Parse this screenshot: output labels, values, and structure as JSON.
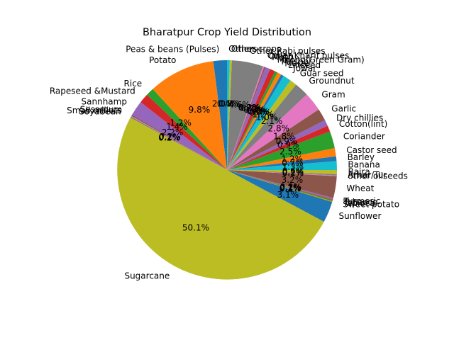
{
  "chart_data": {
    "type": "pie",
    "title": "Bharatpur Crop Yield Distribution",
    "start_angle_deg": 90,
    "direction": "counterclockwise",
    "pct_format": "%1.1f%%",
    "slices": [
      {
        "label": "Peas & beans (Pulses)",
        "value": 2.0,
        "color": "#1f77b4"
      },
      {
        "label": "Potato",
        "value": 9.8,
        "color": "#ff7f0e"
      },
      {
        "label": "Rice",
        "value": 1.2,
        "color": "#2ca02c"
      },
      {
        "label": "Rapeseed &Mustard",
        "value": 1.4,
        "color": "#d62728"
      },
      {
        "label": "Sannhamp",
        "value": 2.2,
        "color": "#9467bd"
      },
      {
        "label": "Sesamum",
        "value": 0.2,
        "color": "#8c564b"
      },
      {
        "label": "Small millets",
        "value": 0.1,
        "color": "#e377c2"
      },
      {
        "label": "Soyabean",
        "value": 0.2,
        "color": "#7f7f7f"
      },
      {
        "label": "Sugarcane",
        "value": 50.1,
        "color": "#bcbd22"
      },
      {
        "label": "Sunflower",
        "value": 3.1,
        "color": "#1f77b4"
      },
      {
        "label": "Sweet potato",
        "value": 0.1,
        "color": "#ff7f0e"
      },
      {
        "label": "Tapioca",
        "value": 0.2,
        "color": "#2ca02c"
      },
      {
        "label": "Tobacco",
        "value": 0.1,
        "color": "#d62728"
      },
      {
        "label": "Turmeric",
        "value": 0.2,
        "color": "#9467bd"
      },
      {
        "label": "Wheat",
        "value": 3.2,
        "color": "#8c564b"
      },
      {
        "label": "other oilseeds",
        "value": 0.1,
        "color": "#e377c2"
      },
      {
        "label": "Arhar/Tur",
        "value": 0.2,
        "color": "#7f7f7f"
      },
      {
        "label": "Bajra",
        "value": 0.6,
        "color": "#bcbd22"
      },
      {
        "label": "Banana",
        "value": 1.3,
        "color": "#17becf"
      },
      {
        "label": "Barley",
        "value": 0.7,
        "color": "#1f77b4"
      },
      {
        "label": "Castor seed",
        "value": 1.2,
        "color": "#ff7f0e"
      },
      {
        "label": "Coriander",
        "value": 2.5,
        "color": "#2ca02c"
      },
      {
        "label": "Cotton(lint)",
        "value": 0.9,
        "color": "#d62728"
      },
      {
        "label": "Dry chillies",
        "value": 0.9,
        "color": "#9467bd"
      },
      {
        "label": "Garlic",
        "value": 1.8,
        "color": "#8c564b"
      },
      {
        "label": "Gram",
        "value": 2.8,
        "color": "#e377c2"
      },
      {
        "label": "Groundnut",
        "value": 2.1,
        "color": "#7f7f7f"
      },
      {
        "label": "Guar seed",
        "value": 1.0,
        "color": "#bcbd22"
      },
      {
        "label": "Jowar",
        "value": 1.2,
        "color": "#17becf"
      },
      {
        "label": "Linseed",
        "value": 0.4,
        "color": "#1f77b4"
      },
      {
        "label": "Maize",
        "value": 0.6,
        "color": "#ff7f0e"
      },
      {
        "label": "Masoor",
        "value": 0.4,
        "color": "#2ca02c"
      },
      {
        "label": "Moong(Green Gram)",
        "value": 0.8,
        "color": "#d62728"
      },
      {
        "label": "Moth",
        "value": 0.7,
        "color": "#9467bd"
      },
      {
        "label": "Onion",
        "value": 0.2,
        "color": "#8c564b"
      },
      {
        "label": "Other Kharif pulses",
        "value": 0.2,
        "color": "#e377c2"
      },
      {
        "label": "Other Rabi pulses",
        "value": 4.6,
        "color": "#7f7f7f"
      },
      {
        "label": "Other crops",
        "value": 0.3,
        "color": "#bcbd22"
      },
      {
        "label": "Others",
        "value": 0.4,
        "color": "#17becf"
      }
    ]
  }
}
